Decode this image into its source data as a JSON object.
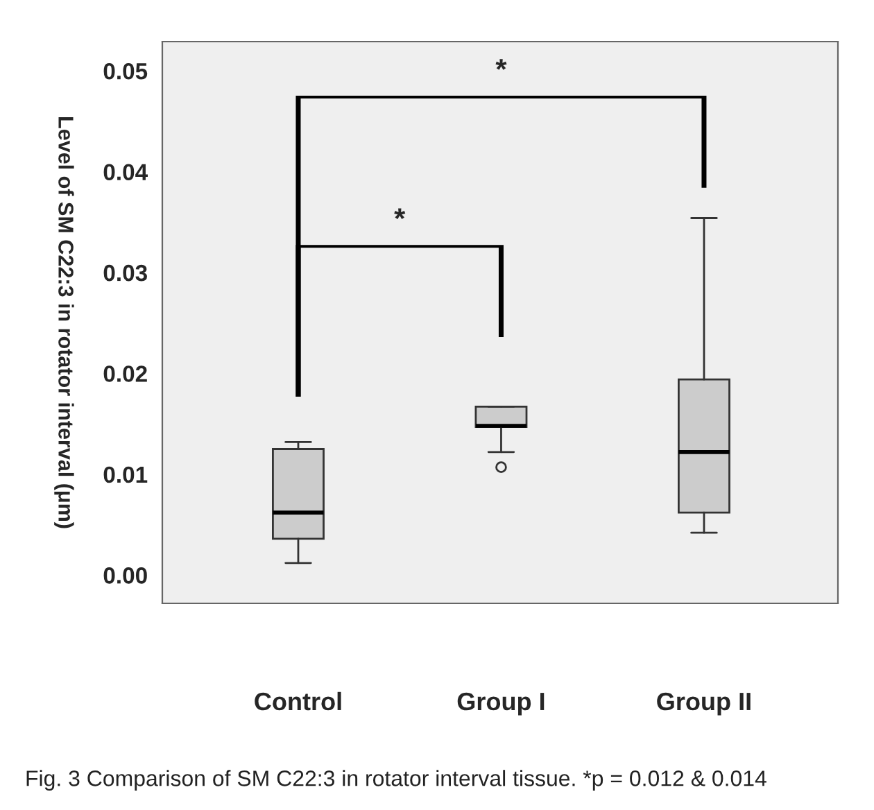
{
  "chart_data": {
    "type": "box",
    "ylabel": "Level of SM C22:3 in rotator interval (μm)",
    "categories": [
      "Control",
      "Group I",
      "Group II"
    ],
    "boxes": [
      {
        "low": 0.0012,
        "q1": 0.0036,
        "median": 0.0062,
        "q3": 0.0125,
        "high": 0.0132
      },
      {
        "low": 0.0122,
        "q1": 0.0147,
        "median": 0.0148,
        "q3": 0.0167,
        "high": 0.0167,
        "outliers": [
          0.0107
        ]
      },
      {
        "low": 0.0042,
        "q1": 0.0062,
        "median": 0.0122,
        "q3": 0.0194,
        "high": 0.0354
      }
    ],
    "color": "#cccccc",
    "ylim": [
      -0.0028,
      0.0529
    ],
    "yticks": [
      {
        "value": 0,
        "label": "0.00"
      },
      {
        "value": 0.01,
        "label": "0.01"
      },
      {
        "value": 0.02,
        "label": "0.02"
      },
      {
        "value": 0.03,
        "label": "0.03"
      },
      {
        "value": 0.04,
        "label": "0.04"
      },
      {
        "value": 0.05,
        "label": "0.05"
      }
    ],
    "grid": false,
    "annotations": [
      "*",
      "*",
      "Fig. 3 Comparison of SM C22:3 in rotator interval tissue. *p = 0.012 & 0.014"
    ]
  }
}
